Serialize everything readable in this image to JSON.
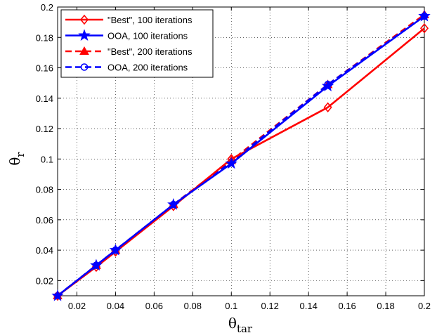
{
  "chart_data": {
    "type": "line",
    "title": "",
    "xlabel_main": "θ",
    "xlabel_sub": "tar",
    "ylabel_main": "θ",
    "ylabel_sub": "r",
    "xlim": [
      0.01,
      0.2
    ],
    "ylim": [
      0.01,
      0.2
    ],
    "x_ticks": [
      0.02,
      0.04,
      0.06,
      0.08,
      0.1,
      0.12,
      0.14,
      0.16,
      0.18,
      0.2
    ],
    "x_tick_labels": [
      "0.02",
      "0.04",
      "0.06",
      "0.08",
      "0.1",
      "0.12",
      "0.14",
      "0.16",
      "0.18",
      "0.2"
    ],
    "y_ticks": [
      0.02,
      0.04,
      0.06,
      0.08,
      0.1,
      0.12,
      0.14,
      0.16,
      0.18,
      0.2
    ],
    "y_tick_labels": [
      "0.02",
      "0.04",
      "0.06",
      "0.08",
      "0.1",
      "0.12",
      "0.14",
      "0.16",
      "0.18",
      "0.2"
    ],
    "grid": true,
    "legend_position": "top-left",
    "series": [
      {
        "name": "\"Best\", 100 iterations",
        "x": [
          0.01,
          0.03,
          0.04,
          0.07,
          0.1,
          0.15,
          0.2
        ],
        "y": [
          0.01,
          0.029,
          0.039,
          0.069,
          0.1,
          0.134,
          0.186
        ],
        "color": "#ff0000",
        "line_style": "solid",
        "marker": "diamond"
      },
      {
        "name": "OOA, 100 iterations",
        "x": [
          0.01,
          0.03,
          0.04,
          0.07,
          0.1,
          0.15,
          0.2
        ],
        "y": [
          0.01,
          0.03,
          0.04,
          0.07,
          0.097,
          0.148,
          0.194
        ],
        "color": "#0000ff",
        "line_style": "solid",
        "marker": "star"
      },
      {
        "name": "\"Best\", 200 iterations",
        "x": [
          0.01,
          0.03,
          0.04,
          0.07,
          0.1,
          0.15,
          0.2
        ],
        "y": [
          0.01,
          0.03,
          0.04,
          0.07,
          0.099,
          0.149,
          0.195
        ],
        "color": "#ff0000",
        "line_style": "dashed",
        "marker": "triangle"
      },
      {
        "name": "OOA, 200 iterations",
        "x": [
          0.01,
          0.03,
          0.04,
          0.07,
          0.1,
          0.15,
          0.2
        ],
        "y": [
          0.01,
          0.03,
          0.04,
          0.07,
          0.098,
          0.149,
          0.194
        ],
        "color": "#0000ff",
        "line_style": "dashed",
        "marker": "circle"
      }
    ]
  }
}
